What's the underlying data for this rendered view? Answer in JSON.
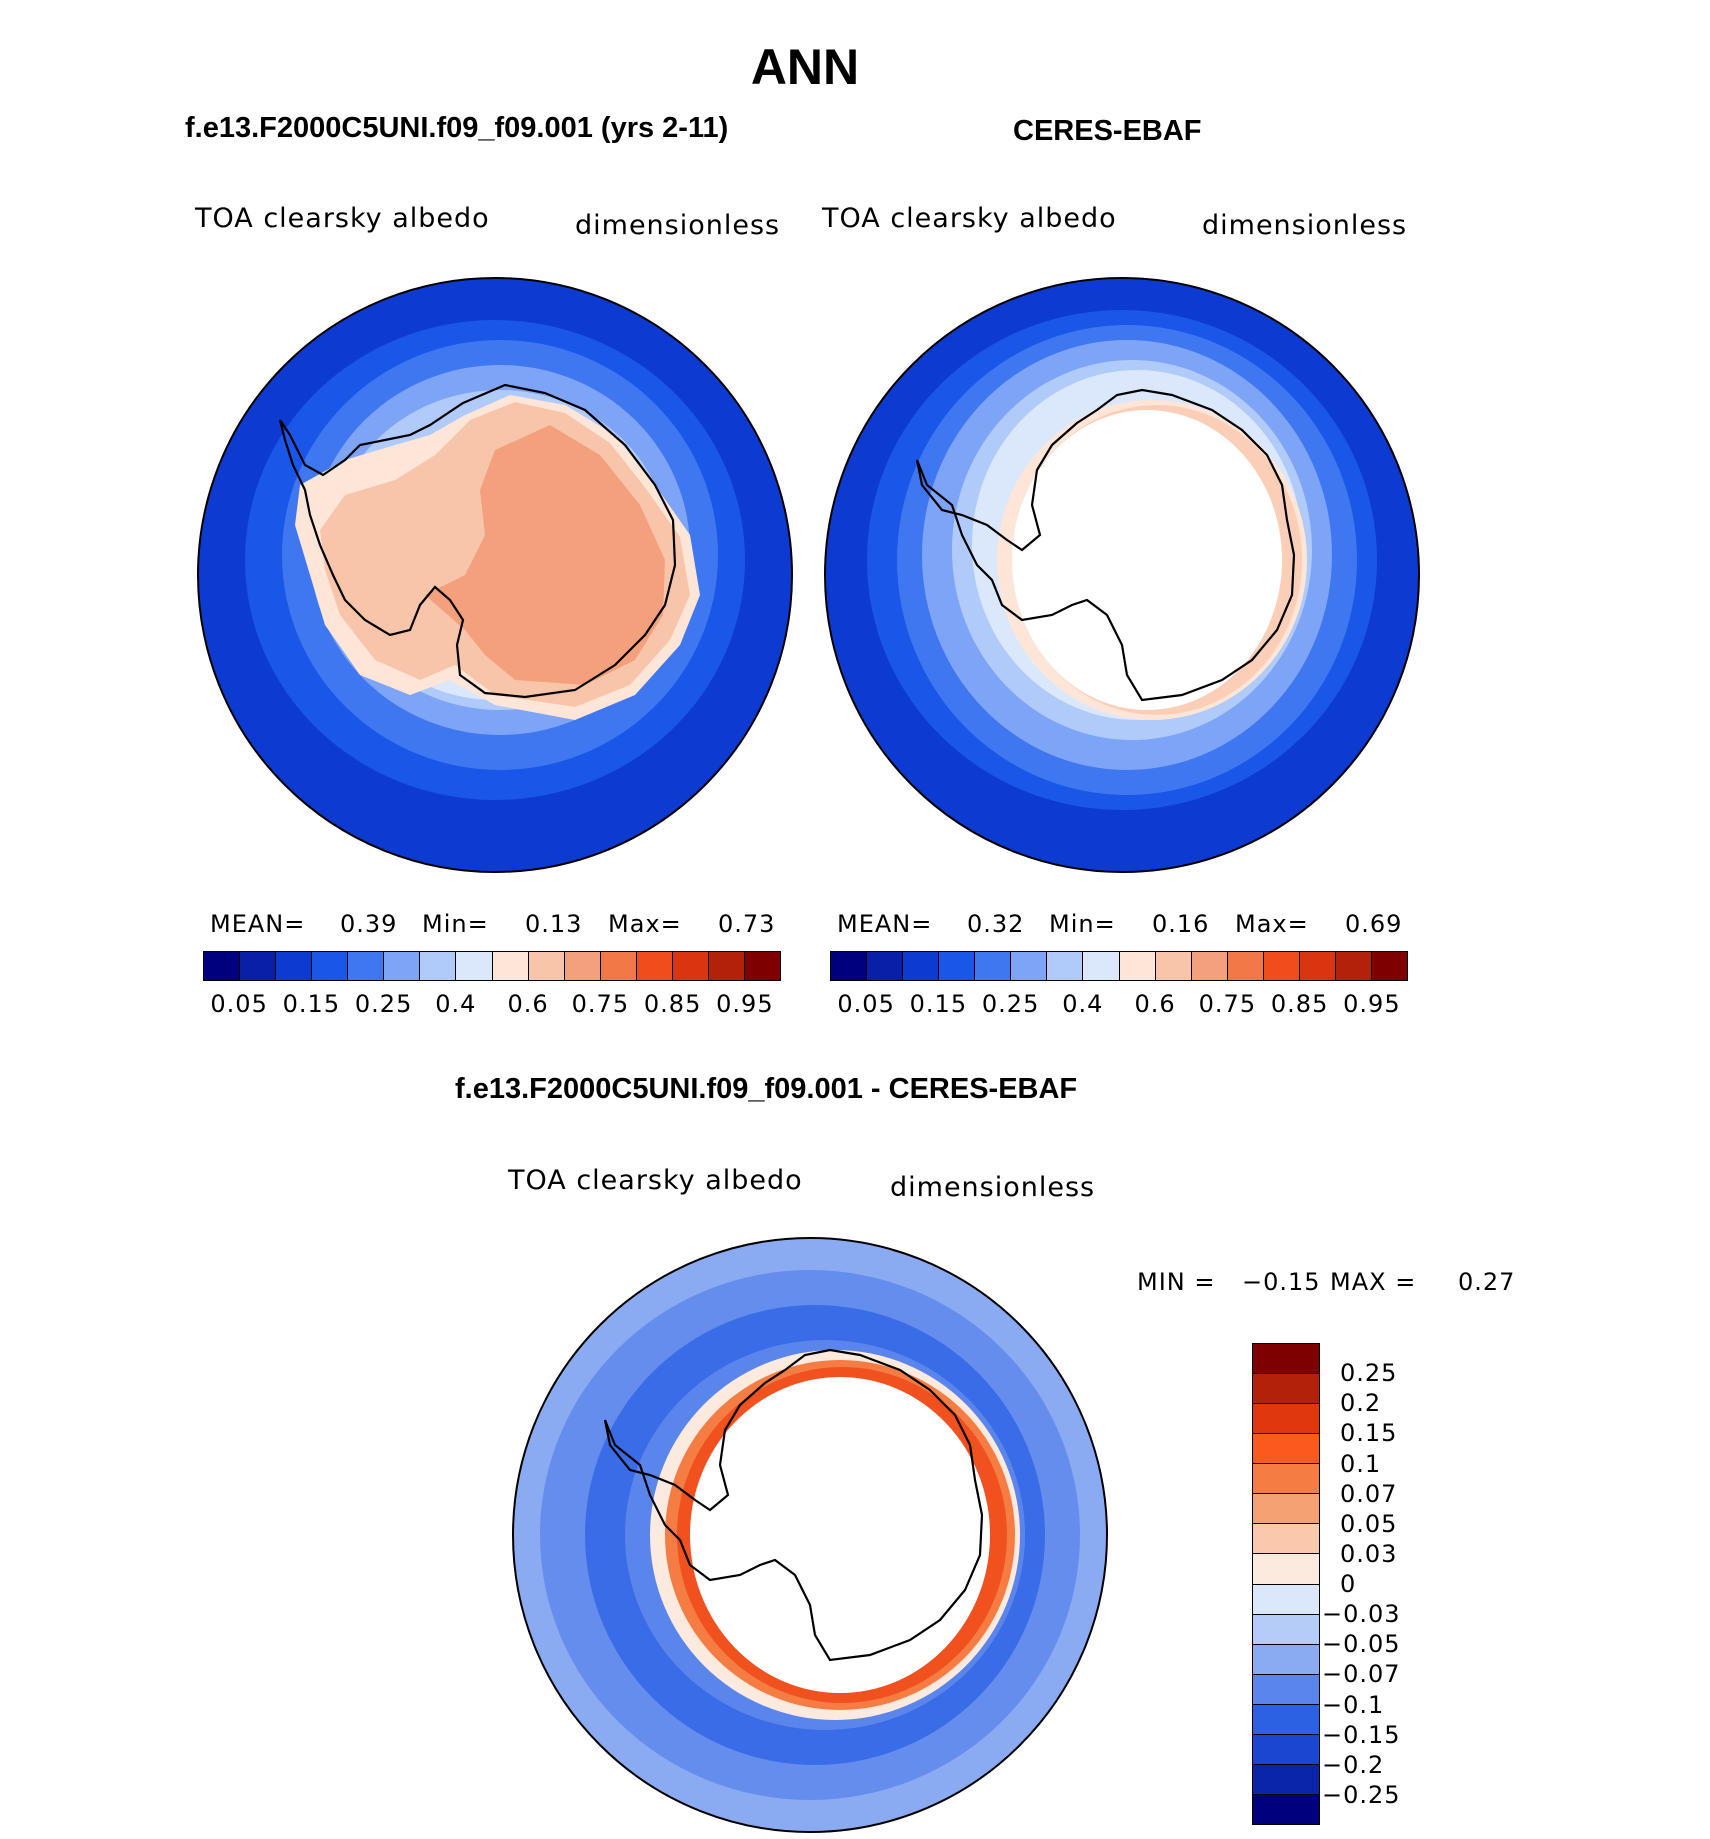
{
  "figure": {
    "title": "ANN"
  },
  "panel_model": {
    "title": "f.e13.F2000C5UNI.f09_f09.001 (yrs 2-11)",
    "variable": "TOA clearsky albedo",
    "units": "dimensionless",
    "mean_label": "MEAN=",
    "mean_value": "0.39",
    "min_label": "Min=",
    "min_value": "0.13",
    "max_label": "Max=",
    "max_value": "0.73"
  },
  "panel_obs": {
    "title": "CERES-EBAF",
    "variable": "TOA clearsky albedo",
    "units": "dimensionless",
    "mean_label": "MEAN=",
    "mean_value": "0.32",
    "min_label": "Min=",
    "min_value": "0.16",
    "max_label": "Max=",
    "max_value": "0.69"
  },
  "colorbar_abs": {
    "colors": [
      "#00007f",
      "#0a1fa8",
      "#0d3bd1",
      "#1a56e8",
      "#3f77f0",
      "#7da4f6",
      "#b0cbf9",
      "#dbe8fc",
      "#fde6d8",
      "#f9c5aa",
      "#f5a07c",
      "#f27848",
      "#f04d1c",
      "#d83510",
      "#b4210a",
      "#7f0000"
    ],
    "tick_labels": [
      "0.05",
      "0.15",
      "0.25",
      "0.4",
      "0.6",
      "0.75",
      "0.85",
      "0.95"
    ]
  },
  "panel_diff": {
    "title": "f.e13.F2000C5UNI.f09_f09.001 - CERES-EBAF",
    "variable": "TOA clearsky albedo",
    "units": "dimensionless",
    "min_label": "MIN =",
    "min_value": "−0.15",
    "max_label": "MAX =",
    "max_value": "0.27"
  },
  "colorbar_diff": {
    "colors": [
      "#7f0000",
      "#b4210a",
      "#e0380c",
      "#fa5a1e",
      "#f57d44",
      "#f6a174",
      "#fac9ab",
      "#fdeadf",
      "#dbe8fc",
      "#b5ccf8",
      "#8aabf2",
      "#5a86ec",
      "#2d61e4",
      "#1a46d2",
      "#0a25aa",
      "#00007f"
    ],
    "tick_labels": [
      "0.25",
      "0.2",
      "0.15",
      "0.1",
      "0.07",
      "0.05",
      "0.03",
      "0",
      "−0.03",
      "−0.05",
      "−0.07",
      "−0.1",
      "−0.15",
      "−0.2",
      "−0.25"
    ]
  },
  "map_colors": {
    "ocean_deep": "#0d3bd1",
    "ocean_mid": "#1a56e8",
    "ocean_light": "#3f77f0",
    "ocean_pale": "#7da4f6",
    "ocean_faint": "#b0cbf9",
    "ocean_ice": "#dbe8fc",
    "land_pale": "#fde6d8",
    "land_mid": "#f9c5aa",
    "land_high": "#f5a07c",
    "diff_red": "#f04d1c",
    "diff_orange": "#f57d44"
  }
}
